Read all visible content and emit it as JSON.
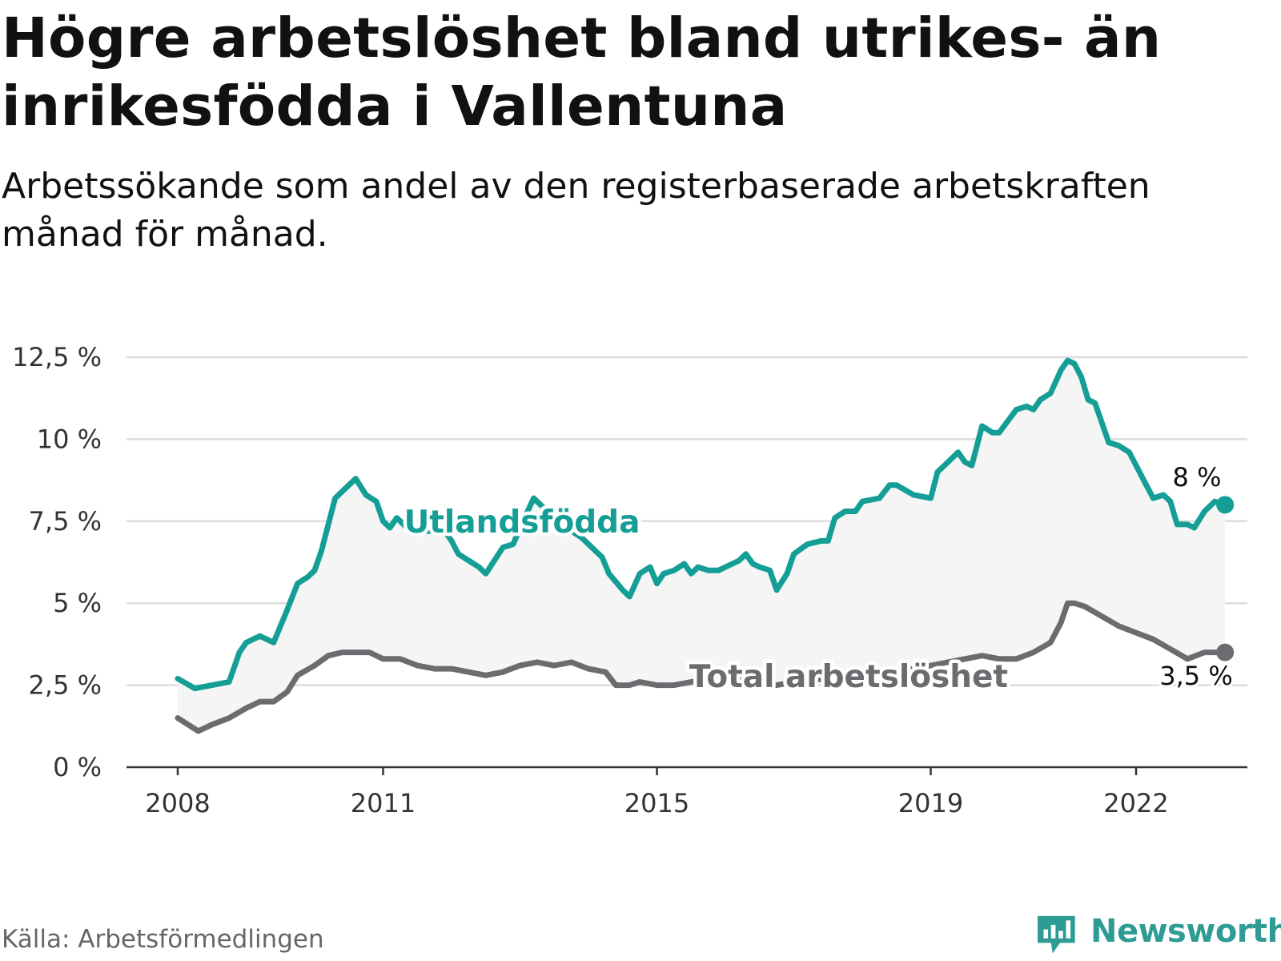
{
  "title": "Högre arbetslöshet bland utrikes- än inrikesfödda i Vallentuna",
  "subtitle": "Arbetssökande som andel av den registerbaserade arbetskraften månad för månad.",
  "source": "Källa: Arbetsförmedlingen",
  "brand": "Newsworthy",
  "colors": {
    "foreign": "#149e95",
    "total": "#6c6c70",
    "band": "#f5f5f5",
    "grid": "#dddddd",
    "axis": "#333333",
    "brand": "#2e9c95"
  },
  "chart_data": {
    "type": "line",
    "title": "Högre arbetslöshet bland utrikes- än inrikesfödda i Vallentuna",
    "xlabel": "",
    "ylabel": "",
    "xlim": [
      2008.0,
      2022.75
    ],
    "ylim": [
      0,
      12.5
    ],
    "grid": true,
    "x_ticks": [
      2008,
      2011,
      2015,
      2019,
      2022
    ],
    "x_tick_labels": [
      "2008",
      "2011",
      "2015",
      "2019",
      "2022"
    ],
    "y_ticks": [
      0,
      2.5,
      5,
      7.5,
      10,
      12.5
    ],
    "y_tick_labels": [
      "0 %",
      "2,5 %",
      "5 %",
      "7,5 %",
      "10 %",
      "12,5 %"
    ],
    "series": [
      {
        "name": "Utlandsfödda",
        "end_label": "8 %",
        "points": [
          [
            2008.0,
            2.7
          ],
          [
            2008.25,
            2.4
          ],
          [
            2008.5,
            2.5
          ],
          [
            2008.75,
            2.6
          ],
          [
            2008.9,
            3.5
          ],
          [
            2009.0,
            3.8
          ],
          [
            2009.2,
            4.0
          ],
          [
            2009.4,
            3.8
          ],
          [
            2009.6,
            4.8
          ],
          [
            2009.75,
            5.6
          ],
          [
            2009.9,
            5.8
          ],
          [
            2010.0,
            6.0
          ],
          [
            2010.1,
            6.6
          ],
          [
            2010.3,
            8.2
          ],
          [
            2010.5,
            8.6
          ],
          [
            2010.6,
            8.8
          ],
          [
            2010.75,
            8.3
          ],
          [
            2010.9,
            8.1
          ],
          [
            2011.0,
            7.5
          ],
          [
            2011.1,
            7.3
          ],
          [
            2011.2,
            7.6
          ],
          [
            2011.3,
            7.4
          ],
          [
            2011.4,
            7.2
          ],
          [
            2011.5,
            7.3
          ],
          [
            2011.6,
            7.2
          ],
          [
            2011.9,
            7.2
          ],
          [
            2012.0,
            6.9
          ],
          [
            2012.1,
            6.5
          ],
          [
            2012.25,
            6.3
          ],
          [
            2012.4,
            6.1
          ],
          [
            2012.5,
            5.9
          ],
          [
            2012.75,
            6.7
          ],
          [
            2012.9,
            6.8
          ],
          [
            2013.0,
            7.3
          ],
          [
            2013.2,
            8.2
          ],
          [
            2013.5,
            7.6
          ],
          [
            2013.75,
            7.2
          ],
          [
            2013.9,
            7.0
          ],
          [
            2014.0,
            6.8
          ],
          [
            2014.2,
            6.4
          ],
          [
            2014.3,
            5.9
          ],
          [
            2014.5,
            5.4
          ],
          [
            2014.6,
            5.2
          ],
          [
            2014.75,
            5.9
          ],
          [
            2014.9,
            6.1
          ],
          [
            2015.0,
            5.6
          ],
          [
            2015.1,
            5.9
          ],
          [
            2015.25,
            6.0
          ],
          [
            2015.4,
            6.2
          ],
          [
            2015.5,
            5.9
          ],
          [
            2015.6,
            6.1
          ],
          [
            2015.75,
            6.0
          ],
          [
            2015.9,
            6.0
          ],
          [
            2016.0,
            6.1
          ],
          [
            2016.2,
            6.3
          ],
          [
            2016.3,
            6.5
          ],
          [
            2016.4,
            6.2
          ],
          [
            2016.5,
            6.1
          ],
          [
            2016.65,
            6.0
          ],
          [
            2016.75,
            5.4
          ],
          [
            2016.9,
            5.9
          ],
          [
            2017.0,
            6.5
          ],
          [
            2017.2,
            6.8
          ],
          [
            2017.4,
            6.9
          ],
          [
            2017.5,
            6.9
          ],
          [
            2017.6,
            7.6
          ],
          [
            2017.75,
            7.8
          ],
          [
            2017.9,
            7.8
          ],
          [
            2018.0,
            8.1
          ],
          [
            2018.25,
            8.2
          ],
          [
            2018.4,
            8.6
          ],
          [
            2018.5,
            8.6
          ],
          [
            2018.75,
            8.3
          ],
          [
            2019.0,
            8.2
          ],
          [
            2019.1,
            9.0
          ],
          [
            2019.25,
            9.3
          ],
          [
            2019.4,
            9.6
          ],
          [
            2019.5,
            9.3
          ],
          [
            2019.6,
            9.2
          ],
          [
            2019.75,
            10.4
          ],
          [
            2019.9,
            10.2
          ],
          [
            2020.0,
            10.2
          ],
          [
            2020.25,
            10.9
          ],
          [
            2020.4,
            11.0
          ],
          [
            2020.5,
            10.9
          ],
          [
            2020.6,
            11.2
          ],
          [
            2020.75,
            11.4
          ],
          [
            2020.9,
            12.1
          ],
          [
            2021.0,
            12.4
          ],
          [
            2021.1,
            12.3
          ],
          [
            2021.2,
            11.9
          ],
          [
            2021.3,
            11.2
          ],
          [
            2021.4,
            11.1
          ],
          [
            2021.5,
            10.5
          ],
          [
            2021.6,
            9.9
          ],
          [
            2021.75,
            9.8
          ],
          [
            2021.9,
            9.6
          ],
          [
            2022.0,
            9.2
          ],
          [
            2022.1,
            8.8
          ],
          [
            2022.25,
            8.2
          ],
          [
            2022.4,
            8.3
          ],
          [
            2022.5,
            8.1
          ],
          [
            2022.6,
            7.4
          ],
          [
            2022.75,
            7.4
          ],
          [
            2022.85,
            7.3
          ],
          [
            2023.0,
            7.8
          ],
          [
            2023.15,
            8.1
          ],
          [
            2023.3,
            8.0
          ]
        ]
      },
      {
        "name": "Total arbetslöshet",
        "end_label": "3,5 %",
        "points": [
          [
            2008.0,
            1.5
          ],
          [
            2008.3,
            1.1
          ],
          [
            2008.5,
            1.3
          ],
          [
            2008.75,
            1.5
          ],
          [
            2009.0,
            1.8
          ],
          [
            2009.2,
            2.0
          ],
          [
            2009.4,
            2.0
          ],
          [
            2009.6,
            2.3
          ],
          [
            2009.75,
            2.8
          ],
          [
            2010.0,
            3.1
          ],
          [
            2010.2,
            3.4
          ],
          [
            2010.4,
            3.5
          ],
          [
            2010.6,
            3.5
          ],
          [
            2010.8,
            3.5
          ],
          [
            2011.0,
            3.3
          ],
          [
            2011.25,
            3.3
          ],
          [
            2011.5,
            3.1
          ],
          [
            2011.75,
            3.0
          ],
          [
            2012.0,
            3.0
          ],
          [
            2012.25,
            2.9
          ],
          [
            2012.5,
            2.8
          ],
          [
            2012.75,
            2.9
          ],
          [
            2013.0,
            3.1
          ],
          [
            2013.25,
            3.2
          ],
          [
            2013.5,
            3.1
          ],
          [
            2013.75,
            3.2
          ],
          [
            2014.0,
            3.0
          ],
          [
            2014.25,
            2.9
          ],
          [
            2014.4,
            2.5
          ],
          [
            2014.6,
            2.5
          ],
          [
            2014.75,
            2.6
          ],
          [
            2015.0,
            2.5
          ],
          [
            2015.25,
            2.5
          ],
          [
            2015.5,
            2.6
          ],
          [
            2015.75,
            2.7
          ],
          [
            2016.0,
            2.8
          ],
          [
            2016.25,
            2.7
          ],
          [
            2016.5,
            2.6
          ],
          [
            2016.75,
            2.5
          ],
          [
            2017.0,
            2.6
          ],
          [
            2017.5,
            2.7
          ],
          [
            2018.0,
            2.8
          ],
          [
            2018.5,
            2.9
          ],
          [
            2019.0,
            3.1
          ],
          [
            2019.5,
            3.3
          ],
          [
            2019.75,
            3.4
          ],
          [
            2020.0,
            3.3
          ],
          [
            2020.25,
            3.3
          ],
          [
            2020.5,
            3.5
          ],
          [
            2020.75,
            3.8
          ],
          [
            2020.9,
            4.4
          ],
          [
            2021.0,
            5.0
          ],
          [
            2021.1,
            5.0
          ],
          [
            2021.25,
            4.9
          ],
          [
            2021.5,
            4.6
          ],
          [
            2021.75,
            4.3
          ],
          [
            2022.0,
            4.1
          ],
          [
            2022.25,
            3.9
          ],
          [
            2022.5,
            3.6
          ],
          [
            2022.75,
            3.3
          ],
          [
            2023.0,
            3.5
          ],
          [
            2023.3,
            3.5
          ]
        ]
      }
    ],
    "annotations": [
      "Utlandsfödda",
      "Total arbetslöshet",
      "8 %",
      "3,5 %"
    ]
  }
}
